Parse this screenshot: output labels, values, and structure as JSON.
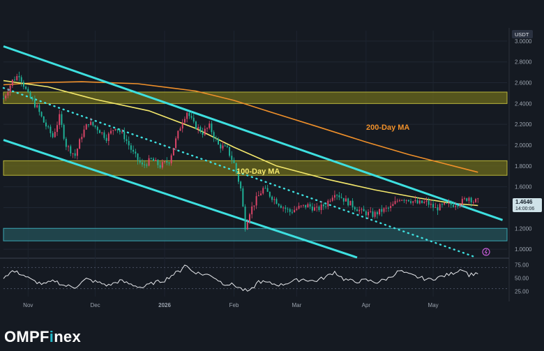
{
  "brand": {
    "logo_prefix": "OMPF",
    "logo_accent": "i",
    "logo_suffix": "nex"
  },
  "colors": {
    "background": "#151a22",
    "channel_line": "#3ee0e0",
    "ma200": "#f0902a",
    "ma100": "#f4e86c",
    "resistance_zone": "#6b6a1c",
    "support_zone": "#24535a",
    "candle_up": "#e0466a",
    "candle_down": "#1fb59a",
    "rsi_line": "#e8eaee"
  },
  "chart_data": {
    "type": "candlestick",
    "quote_currency": "USDT",
    "price_axis": {
      "ylim": [
        0.92,
        3.1
      ],
      "ticks": [
        "3.0000",
        "2.8000",
        "2.6000",
        "2.4000",
        "2.2000",
        "2.0000",
        "1.8000",
        "1.6000",
        "1.4000",
        "1.2000",
        "1.0000"
      ]
    },
    "last_price": {
      "value": "1.4646",
      "countdown": "14:00:06"
    },
    "x_axis": {
      "ticks": [
        "Nov",
        "Dec",
        "2026",
        "Feb",
        "Mar",
        "Apr",
        "May"
      ]
    },
    "rsi_panel": {
      "ylim": [
        15,
        85
      ],
      "ticks": [
        "75.00",
        "50.00",
        "25.00"
      ],
      "upper_band": 70,
      "lower_band": 30
    },
    "annotations": {
      "ma200_label": "200-Day MA",
      "ma100_label": "100-Day MA"
    },
    "zones": [
      {
        "kind": "resistance",
        "low": 2.4,
        "high": 2.51
      },
      {
        "kind": "resistance",
        "low": 1.71,
        "high": 1.85
      },
      {
        "kind": "support",
        "low": 1.08,
        "high": 1.2
      }
    ],
    "trendlines": [
      {
        "name": "upper-channel",
        "style": "solid",
        "from": {
          "date": "2025-10-21",
          "price": 2.95
        },
        "to": {
          "date": "2026-06-01",
          "price": 1.28
        }
      },
      {
        "name": "lower-channel",
        "style": "solid",
        "from": {
          "date": "2025-10-21",
          "price": 2.05
        },
        "to": {
          "date": "2026-03-28",
          "price": 0.92
        }
      },
      {
        "name": "dotted-trend",
        "style": "dotted",
        "from": {
          "date": "2025-10-21",
          "price": 2.55
        },
        "to": {
          "date": "2026-05-19",
          "price": 0.93
        }
      }
    ],
    "ma200": [
      [
        "2025-10-21",
        2.58
      ],
      [
        "2025-11-05",
        2.6
      ],
      [
        "2025-11-25",
        2.61
      ],
      [
        "2025-12-20",
        2.59
      ],
      [
        "2026-01-15",
        2.52
      ],
      [
        "2026-02-01",
        2.43
      ],
      [
        "2026-02-20",
        2.3
      ],
      [
        "2026-03-10",
        2.18
      ],
      [
        "2026-04-01",
        2.03
      ],
      [
        "2026-04-20",
        1.91
      ],
      [
        "2026-05-10",
        1.8
      ],
      [
        "2026-05-21",
        1.74
      ]
    ],
    "ma100": [
      [
        "2025-10-21",
        2.62
      ],
      [
        "2025-11-10",
        2.56
      ],
      [
        "2025-12-01",
        2.44
      ],
      [
        "2025-12-25",
        2.33
      ],
      [
        "2026-01-15",
        2.16
      ],
      [
        "2026-02-01",
        1.98
      ],
      [
        "2026-02-20",
        1.8
      ],
      [
        "2026-03-15",
        1.67
      ],
      [
        "2026-04-05",
        1.57
      ],
      [
        "2026-04-25",
        1.49
      ],
      [
        "2026-05-10",
        1.44
      ],
      [
        "2026-05-21",
        1.42
      ]
    ],
    "price_path": [
      [
        "2025-10-21",
        2.45
      ],
      [
        "2025-10-25",
        2.62
      ],
      [
        "2025-10-28",
        2.68
      ],
      [
        "2025-11-01",
        2.48
      ],
      [
        "2025-11-05",
        2.36
      ],
      [
        "2025-11-08",
        2.22
      ],
      [
        "2025-11-12",
        2.08
      ],
      [
        "2025-11-15",
        2.27
      ],
      [
        "2025-11-18",
        2.0
      ],
      [
        "2025-11-22",
        1.9
      ],
      [
        "2025-11-25",
        2.1
      ],
      [
        "2025-11-28",
        2.22
      ],
      [
        "2025-12-02",
        2.16
      ],
      [
        "2025-12-06",
        2.07
      ],
      [
        "2025-12-10",
        2.18
      ],
      [
        "2025-12-14",
        2.08
      ],
      [
        "2025-12-18",
        1.92
      ],
      [
        "2025-12-22",
        1.8
      ],
      [
        "2025-12-26",
        1.86
      ],
      [
        "2025-12-30",
        1.8
      ],
      [
        "2026-01-03",
        1.85
      ],
      [
        "2026-01-06",
        2.05
      ],
      [
        "2026-01-09",
        2.24
      ],
      [
        "2026-01-11",
        2.32
      ],
      [
        "2026-01-14",
        2.2
      ],
      [
        "2026-01-18",
        2.12
      ],
      [
        "2026-01-21",
        2.18
      ],
      [
        "2026-01-25",
        2.0
      ],
      [
        "2026-01-29",
        1.96
      ],
      [
        "2026-02-01",
        1.82
      ],
      [
        "2026-02-04",
        1.58
      ],
      [
        "2026-02-06",
        1.22
      ],
      [
        "2026-02-08",
        1.36
      ],
      [
        "2026-02-11",
        1.48
      ],
      [
        "2026-02-14",
        1.58
      ],
      [
        "2026-02-18",
        1.5
      ],
      [
        "2026-02-22",
        1.42
      ],
      [
        "2026-02-26",
        1.36
      ],
      [
        "2026-03-02",
        1.4
      ],
      [
        "2026-03-06",
        1.42
      ],
      [
        "2026-03-10",
        1.38
      ],
      [
        "2026-03-14",
        1.43
      ],
      [
        "2026-03-18",
        1.55
      ],
      [
        "2026-03-22",
        1.48
      ],
      [
        "2026-03-26",
        1.42
      ],
      [
        "2026-03-30",
        1.36
      ],
      [
        "2026-04-04",
        1.33
      ],
      [
        "2026-04-08",
        1.37
      ],
      [
        "2026-04-12",
        1.4
      ],
      [
        "2026-04-16",
        1.49
      ],
      [
        "2026-04-20",
        1.48
      ],
      [
        "2026-04-24",
        1.44
      ],
      [
        "2026-04-28",
        1.45
      ],
      [
        "2026-05-02",
        1.39
      ],
      [
        "2026-05-06",
        1.42
      ],
      [
        "2026-05-10",
        1.43
      ],
      [
        "2026-05-14",
        1.46
      ],
      [
        "2026-05-17",
        1.5
      ],
      [
        "2026-05-19",
        1.46
      ],
      [
        "2026-05-21",
        1.46
      ]
    ],
    "rsi": [
      [
        "2025-10-21",
        52
      ],
      [
        "2025-10-25",
        63
      ],
      [
        "2025-10-29",
        58
      ],
      [
        "2025-11-03",
        45
      ],
      [
        "2025-11-08",
        38
      ],
      [
        "2025-11-13",
        45
      ],
      [
        "2025-11-17",
        36
      ],
      [
        "2025-11-22",
        33
      ],
      [
        "2025-11-27",
        48
      ],
      [
        "2025-12-02",
        42
      ],
      [
        "2025-12-07",
        36
      ],
      [
        "2025-12-12",
        45
      ],
      [
        "2025-12-17",
        38
      ],
      [
        "2025-12-22",
        32
      ],
      [
        "2025-12-27",
        41
      ],
      [
        "2026-01-01",
        46
      ],
      [
        "2026-01-04",
        55
      ],
      [
        "2026-01-08",
        64
      ],
      [
        "2026-01-10",
        76
      ],
      [
        "2026-01-13",
        64
      ],
      [
        "2026-01-17",
        58
      ],
      [
        "2026-01-22",
        55
      ],
      [
        "2026-01-27",
        40
      ],
      [
        "2026-02-01",
        37
      ],
      [
        "2026-02-05",
        28
      ],
      [
        "2026-02-08",
        24
      ],
      [
        "2026-02-12",
        44
      ],
      [
        "2026-02-17",
        40
      ],
      [
        "2026-02-22",
        37
      ],
      [
        "2026-02-27",
        44
      ],
      [
        "2026-03-04",
        48
      ],
      [
        "2026-03-09",
        44
      ],
      [
        "2026-03-14",
        52
      ],
      [
        "2026-03-18",
        62
      ],
      [
        "2026-03-22",
        48
      ],
      [
        "2026-03-27",
        43
      ],
      [
        "2026-04-01",
        46
      ],
      [
        "2026-04-06",
        42
      ],
      [
        "2026-04-11",
        50
      ],
      [
        "2026-04-16",
        64
      ],
      [
        "2026-04-19",
        58
      ],
      [
        "2026-04-24",
        52
      ],
      [
        "2026-04-29",
        47
      ],
      [
        "2026-05-04",
        52
      ],
      [
        "2026-05-09",
        58
      ],
      [
        "2026-05-14",
        68
      ],
      [
        "2026-05-17",
        56
      ],
      [
        "2026-05-21",
        60
      ]
    ]
  }
}
